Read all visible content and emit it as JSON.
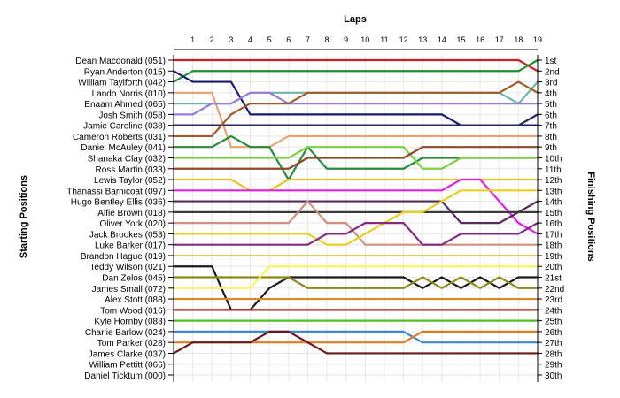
{
  "chart_data": {
    "type": "line",
    "title": "",
    "xlabel": "Laps",
    "ylabel_left": "Starting Positions",
    "ylabel_right": "Finishing Positions",
    "x": [
      0,
      1,
      2,
      3,
      4,
      5,
      6,
      7,
      8,
      9,
      10,
      11,
      12,
      13,
      14,
      15,
      16,
      17,
      18,
      19
    ],
    "lap_ticks": [
      "1",
      "2",
      "3",
      "4",
      "5",
      "6",
      "7",
      "8",
      "9",
      "10",
      "11",
      "12",
      "13",
      "14",
      "15",
      "16",
      "17",
      "18",
      "19"
    ],
    "left_labels": [
      "Dean Macdonald (051)",
      "Ryan Anderton (015)",
      "William Taylforth (042)",
      "Lando Norris (010)",
      "Enaam Ahmed (065)",
      "Josh Smith (058)",
      "Jamie Caroline (038)",
      "Cameron Roberts (031)",
      "Daniel McAuley (041)",
      "Shanaka Clay (032)",
      "Ross Martin (033)",
      "Lewis Taylor (052)",
      "Thanassi Barnicoat (097)",
      "Hugo Bentley Ellis (036)",
      "Alfie Brown (018)",
      "Oliver York (020)",
      "Jack Brookes (053)",
      "Luke Barker (017)",
      "Brandon Hague (019)",
      "Teddy Wilson (021)",
      "Dan Zelos (045)",
      "James Small (072)",
      "Alex Stott (088)",
      "Tom Wood (016)",
      "Kyle Hornby (083)",
      "Charlie Barlow (024)",
      "Tom Parker (028)",
      "James Clarke (037)",
      "William Pettitt (066)",
      "Daniel Ticktum (000)"
    ],
    "right_labels": [
      "1st",
      "2nd",
      "3rd",
      "4th",
      "5th",
      "6th",
      "7th",
      "8th",
      "9th",
      "10th",
      "11th",
      "12th",
      "13th",
      "14th",
      "15th",
      "16th",
      "17th",
      "18th",
      "19th",
      "20th",
      "21st",
      "22nd",
      "23rd",
      "24th",
      "25th",
      "26th",
      "27th",
      "28th",
      "29th",
      "30th"
    ],
    "ylim": [
      1,
      30
    ],
    "y_inverted": true,
    "grid": true,
    "series": [
      {
        "color": "#cc1f1f",
        "values": [
          1,
          1,
          1,
          1,
          1,
          1,
          1,
          1,
          1,
          1,
          1,
          1,
          1,
          1,
          1,
          1,
          1,
          1,
          1,
          2
        ]
      },
      {
        "color": "#1f8f2e",
        "values": [
          3,
          2,
          2,
          2,
          2,
          2,
          2,
          2,
          2,
          2,
          2,
          2,
          2,
          2,
          2,
          2,
          2,
          2,
          2,
          1
        ]
      },
      {
        "color": "#1a1a6e",
        "values": [
          2,
          3,
          3,
          3,
          6,
          6,
          6,
          6,
          6,
          6,
          6,
          6,
          6,
          6,
          6,
          7,
          7,
          7,
          7,
          7
        ]
      },
      {
        "color": "#e8a070",
        "values": [
          4,
          4,
          4,
          9,
          9,
          9,
          8,
          8,
          8,
          8,
          8,
          8,
          8,
          8,
          8,
          8,
          8,
          8,
          8,
          8
        ]
      },
      {
        "color": "#6fb5a8",
        "values": [
          5,
          5,
          5,
          5,
          4,
          4,
          4,
          4,
          4,
          4,
          4,
          4,
          4,
          4,
          4,
          4,
          4,
          4,
          5,
          3
        ]
      },
      {
        "color": "#9a7ad8",
        "values": [
          6,
          6,
          5,
          5,
          4,
          4,
          5,
          5,
          5,
          5,
          5,
          5,
          5,
          5,
          5,
          5,
          5,
          5,
          5,
          5
        ]
      },
      {
        "color": "#2a2a5a",
        "values": [
          7,
          7,
          7,
          7,
          7,
          7,
          7,
          7,
          7,
          7,
          7,
          7,
          7,
          7,
          7,
          7,
          7,
          7,
          7,
          6
        ]
      },
      {
        "color": "#a05a2a",
        "values": [
          8,
          8,
          8,
          6,
          5,
          5,
          5,
          4,
          4,
          4,
          4,
          4,
          4,
          4,
          4,
          4,
          4,
          4,
          3,
          4
        ]
      },
      {
        "color": "#2a8a3a",
        "values": [
          9,
          9,
          9,
          8,
          9,
          9,
          12,
          9,
          11,
          11,
          11,
          11,
          11,
          10,
          10,
          10,
          10,
          10,
          10,
          10
        ]
      },
      {
        "color": "#7ad040",
        "values": [
          10,
          10,
          10,
          10,
          10,
          10,
          10,
          9,
          9,
          9,
          9,
          9,
          9,
          11,
          11,
          10,
          10,
          10,
          10,
          10
        ]
      },
      {
        "color": "#8a4a2a",
        "values": [
          11,
          11,
          11,
          11,
          11,
          11,
          11,
          10,
          10,
          10,
          10,
          10,
          10,
          9,
          9,
          9,
          9,
          9,
          9,
          9
        ]
      },
      {
        "color": "#e8c020",
        "values": [
          12,
          12,
          12,
          12,
          13,
          13,
          12,
          12,
          12,
          12,
          12,
          12,
          12,
          12,
          12,
          12,
          12,
          12,
          12,
          12
        ]
      },
      {
        "color": "#e020e0",
        "values": [
          13,
          13,
          13,
          13,
          13,
          13,
          13,
          13,
          13,
          13,
          13,
          13,
          13,
          13,
          13,
          12,
          12,
          14,
          16,
          17
        ]
      },
      {
        "color": "#5a2a5a",
        "values": [
          14,
          14,
          14,
          14,
          14,
          14,
          14,
          14,
          14,
          14,
          14,
          14,
          14,
          14,
          14,
          16,
          16,
          16,
          15,
          14
        ]
      },
      {
        "color": "#3a3a3a",
        "values": [
          15,
          15,
          15,
          15,
          15,
          15,
          15,
          15,
          15,
          15,
          15,
          15,
          15,
          15,
          15,
          15,
          15,
          15,
          15,
          15
        ]
      },
      {
        "color": "#d09080",
        "values": [
          16,
          16,
          16,
          16,
          16,
          16,
          16,
          14,
          16,
          16,
          18,
          18,
          18,
          18,
          18,
          18,
          18,
          18,
          18,
          18
        ]
      },
      {
        "color": "#e8d020",
        "values": [
          17,
          17,
          17,
          17,
          17,
          17,
          17,
          17,
          18,
          18,
          17,
          16,
          15,
          15,
          14,
          13,
          13,
          13,
          13,
          13
        ]
      },
      {
        "color": "#802a80",
        "values": [
          18,
          18,
          18,
          18,
          18,
          18,
          18,
          18,
          17,
          17,
          16,
          16,
          16,
          18,
          18,
          17,
          17,
          17,
          17,
          16
        ]
      },
      {
        "color": "#d8d060",
        "values": [
          19,
          19,
          19,
          19,
          19,
          19,
          19,
          19,
          19,
          19,
          19,
          19,
          19,
          19,
          19,
          19,
          19,
          19,
          19,
          19
        ]
      },
      {
        "color": "#1a1a1a",
        "values": [
          20,
          20,
          20,
          24,
          24,
          22,
          21,
          21,
          21,
          21,
          21,
          21,
          21,
          22,
          21,
          22,
          21,
          22,
          21,
          21
        ]
      },
      {
        "color": "#8a8a1a",
        "values": [
          21,
          21,
          21,
          21,
          21,
          21,
          21,
          22,
          22,
          22,
          22,
          22,
          22,
          21,
          22,
          21,
          22,
          21,
          22,
          22
        ]
      },
      {
        "color": "#fff060",
        "values": [
          22,
          22,
          22,
          22,
          22,
          20,
          20,
          20,
          20,
          20,
          20,
          20,
          20,
          20,
          20,
          20,
          20,
          20,
          20,
          20
        ]
      },
      {
        "color": "#e08820",
        "values": [
          23,
          23,
          23,
          23,
          23,
          23,
          23,
          23,
          23,
          23,
          23,
          23,
          23,
          23,
          23,
          23,
          23,
          23,
          23,
          23
        ]
      },
      {
        "color": "#b81a1a",
        "values": [
          24,
          24,
          24,
          24,
          24,
          24,
          24,
          24,
          24,
          24,
          24,
          24,
          24,
          24,
          24,
          24,
          24,
          24,
          24,
          24
        ]
      },
      {
        "color": "#50c020",
        "values": [
          25,
          25,
          25,
          25,
          25,
          25,
          25,
          25,
          25,
          25,
          25,
          25,
          25,
          25,
          25,
          25,
          25,
          25,
          25,
          25
        ]
      },
      {
        "color": "#3a8ad0",
        "values": [
          26,
          26,
          26,
          26,
          26,
          26,
          26,
          26,
          26,
          26,
          26,
          26,
          26,
          27,
          27,
          27,
          27,
          27,
          27,
          27
        ]
      },
      {
        "color": "#e07a20",
        "values": [
          27,
          27,
          27,
          27,
          27,
          27,
          27,
          27,
          27,
          27,
          27,
          27,
          27,
          26,
          26,
          26,
          26,
          26,
          26,
          26
        ]
      },
      {
        "color": "#6a1a1a",
        "values": [
          28,
          27,
          27,
          27,
          27,
          26,
          26,
          27,
          28,
          28,
          28,
          28,
          28,
          28,
          28,
          28,
          28,
          28,
          28,
          28
        ]
      }
    ]
  }
}
